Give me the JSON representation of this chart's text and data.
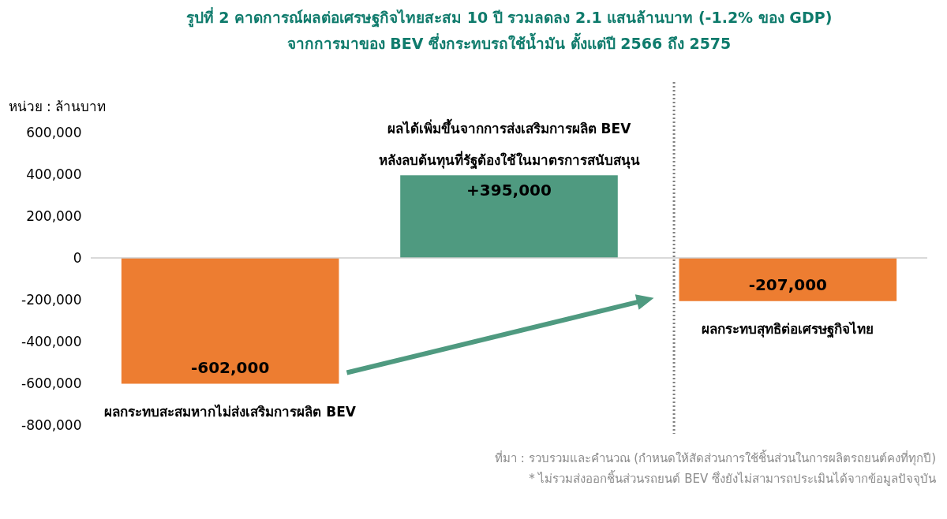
{
  "chart_data": {
    "type": "bar",
    "title": "รูปที่ 2 คาดการณ์ผลต่อเศรษฐกิจไทยสะสม 10 ปี รวมลดลง 2.1 แสนล้านบาท (-1.2% ของ GDP)",
    "subtitle": "จากการมาของ BEV ซึ่งกระทบรถใช้น้ำมัน ตั้งแต่ปี 2566 ถึง 2575",
    "ylabel": "หน่วย : ล้านบาท",
    "categories": [
      null,
      null,
      null
    ],
    "values": [
      -602000,
      395000,
      -207000
    ],
    "colors": [
      "#ed7d31",
      "#4f9a80",
      "#ed7d31"
    ],
    "value_labels": [
      "-602,000",
      "+395,000",
      "-207,000"
    ],
    "ylim": [
      -800000,
      600000
    ],
    "yticks": [
      {
        "value": -800000,
        "label": "-800,000"
      },
      {
        "value": -600000,
        "label": "-600,000"
      },
      {
        "value": -400000,
        "label": "-400,000"
      },
      {
        "value": -200000,
        "label": "-200,000"
      },
      0,
      {
        "value": 200000,
        "label": "200,000"
      },
      {
        "value": 400000,
        "label": "400,000"
      },
      {
        "value": 600000,
        "label": "600,000"
      }
    ],
    "tick_labels": "y",
    "grid": false,
    "ref_lines": [
      {
        "axis": "y",
        "value": 0,
        "color": "#cccccc",
        "line_style": "solid"
      }
    ],
    "annotations": [
      "ผลกระทบสะสมหากไม่ส่งเสริมการผลิต BEV",
      "ผลได้เพิ่มขึ้นจากการส่งเสริมการผลิต BEV\nหลังลบต้นทุนที่รัฐต้องใช้ในมาตรการสนับสนุน",
      "ผลกระทบสุทธิต่อเศรษฐกิจไทย",
      "ที่มา : รวบรวมและคำนวณ (กำหนดให้สัดส่วนการใช้ชิ้นส่วนในการผลิตรถยนต์คงที่ทุกปี)",
      "* ไม่รวมส่งออกชิ้นส่วนรถยนต์ BEV ซึ่งยังไม่สามารถประเมินได้จากข้อมูลปัจจุบัน"
    ]
  }
}
